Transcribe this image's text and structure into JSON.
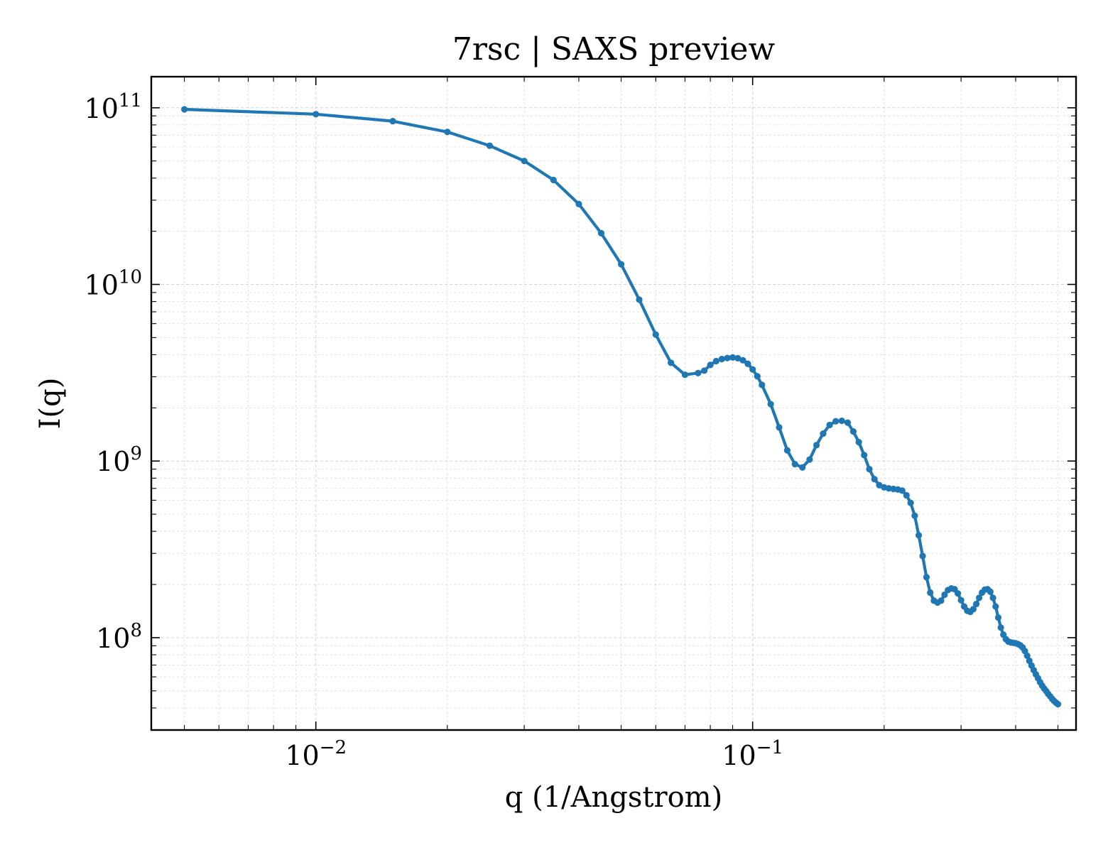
{
  "chart_data": {
    "type": "line",
    "title": "7rsc | SAXS preview",
    "xlabel": "q (1/Angstrom)",
    "ylabel": "I(q)",
    "xscale": "log",
    "yscale": "log",
    "xlim": [
      0.0042,
      0.55
    ],
    "ylim": [
      30000000,
      150000000000
    ],
    "grid": true,
    "legend": "none",
    "line_color": "#1f77b4",
    "x_ticks": [
      {
        "value": 0.01,
        "base": "10",
        "exp": "−2"
      },
      {
        "value": 0.1,
        "base": "10",
        "exp": "−1"
      }
    ],
    "y_ticks": [
      {
        "value": 100000000,
        "base": "10",
        "exp": "8"
      },
      {
        "value": 1000000000,
        "base": "10",
        "exp": "9"
      },
      {
        "value": 10000000000,
        "base": "10",
        "exp": "10"
      },
      {
        "value": 100000000000,
        "base": "10",
        "exp": "11"
      }
    ],
    "series": [
      {
        "x": [
          0.005,
          0.01,
          0.015,
          0.02,
          0.025,
          0.03,
          0.035,
          0.04,
          0.045,
          0.05,
          0.055,
          0.06,
          0.065,
          0.07,
          0.075,
          0.0775,
          0.08,
          0.0825,
          0.085,
          0.0875,
          0.09,
          0.0925,
          0.095,
          0.0975,
          0.1,
          0.1025,
          0.105,
          0.11,
          0.115,
          0.12,
          0.125,
          0.13,
          0.135,
          0.14,
          0.145,
          0.15,
          0.155,
          0.16,
          0.165,
          0.17,
          0.175,
          0.18,
          0.185,
          0.19,
          0.195,
          0.2,
          0.205,
          0.21,
          0.215,
          0.22,
          0.225,
          0.23,
          0.235,
          0.24,
          0.245,
          0.25,
          0.255,
          0.26,
          0.265,
          0.27,
          0.275,
          0.28,
          0.285,
          0.29,
          0.295,
          0.3,
          0.305,
          0.31,
          0.315,
          0.32,
          0.325,
          0.33,
          0.335,
          0.34,
          0.345,
          0.35,
          0.355,
          0.36,
          0.365,
          0.37,
          0.375,
          0.38,
          0.385,
          0.39,
          0.395,
          0.4,
          0.405,
          0.41,
          0.415,
          0.42,
          0.425,
          0.43,
          0.435,
          0.44,
          0.445,
          0.45,
          0.455,
          0.46,
          0.465,
          0.47,
          0.475,
          0.48,
          0.485,
          0.49,
          0.495,
          0.5
        ],
        "y": [
          98000000000,
          92000000000,
          84000000000,
          73000000000,
          61000000000,
          50000000000,
          39000000000,
          28500000000,
          19500000000,
          13000000000,
          8200000000,
          5200000000,
          3600000000,
          3080000000,
          3150000000,
          3250000000,
          3500000000,
          3680000000,
          3780000000,
          3830000000,
          3860000000,
          3820000000,
          3720000000,
          3550000000,
          3300000000,
          3020000000,
          2700000000,
          2100000000,
          1550000000,
          1150000000,
          960000000,
          920000000,
          1020000000,
          1230000000,
          1430000000,
          1600000000,
          1680000000,
          1690000000,
          1650000000,
          1470000000,
          1280000000,
          1080000000,
          900000000,
          790000000,
          730000000,
          710000000,
          700000000,
          695000000,
          690000000,
          680000000,
          640000000,
          580000000,
          490000000,
          380000000,
          290000000,
          220000000,
          180000000,
          162000000,
          158000000,
          162000000,
          175000000,
          186000000,
          190000000,
          188000000,
          178000000,
          163000000,
          150000000,
          142000000,
          140000000,
          145000000,
          155000000,
          168000000,
          180000000,
          187000000,
          188000000,
          182000000,
          168000000,
          150000000,
          130000000,
          114000000,
          104000000,
          98000000,
          95000000,
          94000000,
          93500000,
          93000000,
          92000000,
          90500000,
          88000000,
          84000000,
          79000000,
          74000000,
          69500000,
          65500000,
          62000000,
          59000000,
          56000000,
          53500000,
          51500000,
          49800000,
          48000000,
          46500000,
          45000000,
          43800000,
          42800000,
          42000000
        ]
      }
    ]
  }
}
